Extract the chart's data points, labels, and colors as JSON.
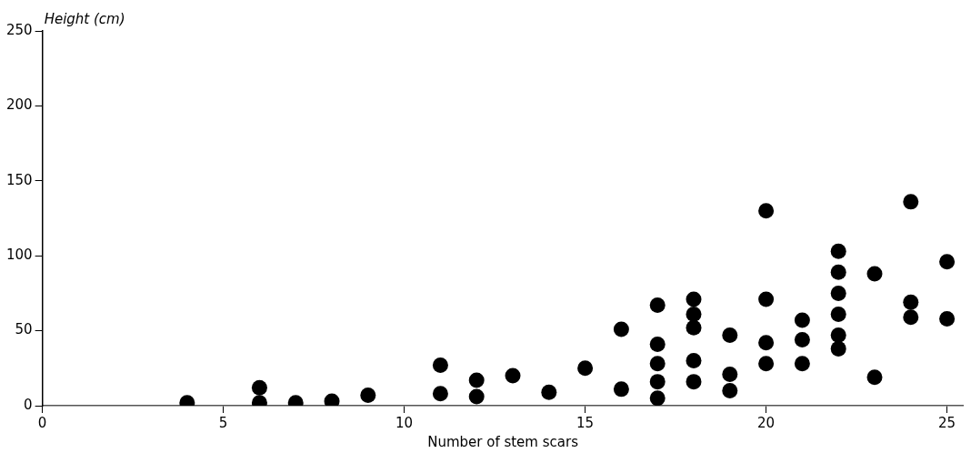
{
  "chart_data": {
    "type": "scatter",
    "xlabel": "Number of stem scars",
    "ylabel": "Height (cm)",
    "x": [
      4,
      6,
      6,
      7,
      8,
      9,
      11,
      11,
      12,
      12,
      13,
      14,
      15,
      16,
      16,
      17,
      17,
      17,
      17,
      17,
      18,
      18,
      18,
      18,
      18,
      19,
      19,
      19,
      20,
      20,
      20,
      20,
      21,
      21,
      21,
      22,
      22,
      22,
      22,
      22,
      22,
      23,
      23,
      24,
      24,
      24,
      25,
      25
    ],
    "values": [
      2,
      12,
      2,
      2,
      3,
      7,
      27,
      8,
      17,
      6,
      20,
      9,
      25,
      51,
      11,
      67,
      41,
      28,
      16,
      5,
      71,
      61,
      52,
      30,
      16,
      47,
      21,
      10,
      130,
      71,
      42,
      28,
      57,
      44,
      28,
      103,
      89,
      75,
      61,
      47,
      38,
      88,
      19,
      136,
      69,
      59,
      96,
      58
    ],
    "color": "#000000",
    "marker": "circle",
    "xlim": [
      0,
      25.45
    ],
    "xticks": [
      0,
      5,
      10,
      15,
      20,
      25
    ],
    "ylim": [
      0,
      250
    ],
    "yticks": [
      0,
      50,
      100,
      150,
      200,
      250
    ],
    "grid": false,
    "legend": false
  }
}
